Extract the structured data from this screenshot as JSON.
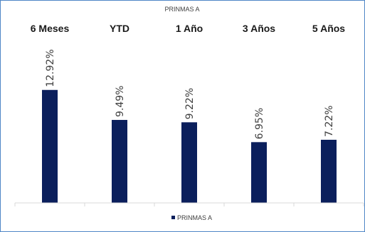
{
  "chart_data": {
    "type": "bar",
    "title": "PRINMAS A",
    "categories": [
      "6 Meses",
      "YTD",
      "1 Año",
      "3 Años",
      "5 Años"
    ],
    "series": [
      {
        "name": "PRINMAS A",
        "values": [
          12.92,
          9.49,
          9.22,
          6.95,
          7.22
        ],
        "labels": [
          "12.92%",
          "9.49%",
          "9.22%",
          "6.95%",
          "7.22%"
        ]
      }
    ],
    "ylim": [
      0,
      21.5
    ],
    "grid": false,
    "legend": "bottom",
    "bar_color": "#0b1f5c",
    "axis_color": "#d9d9d9"
  }
}
